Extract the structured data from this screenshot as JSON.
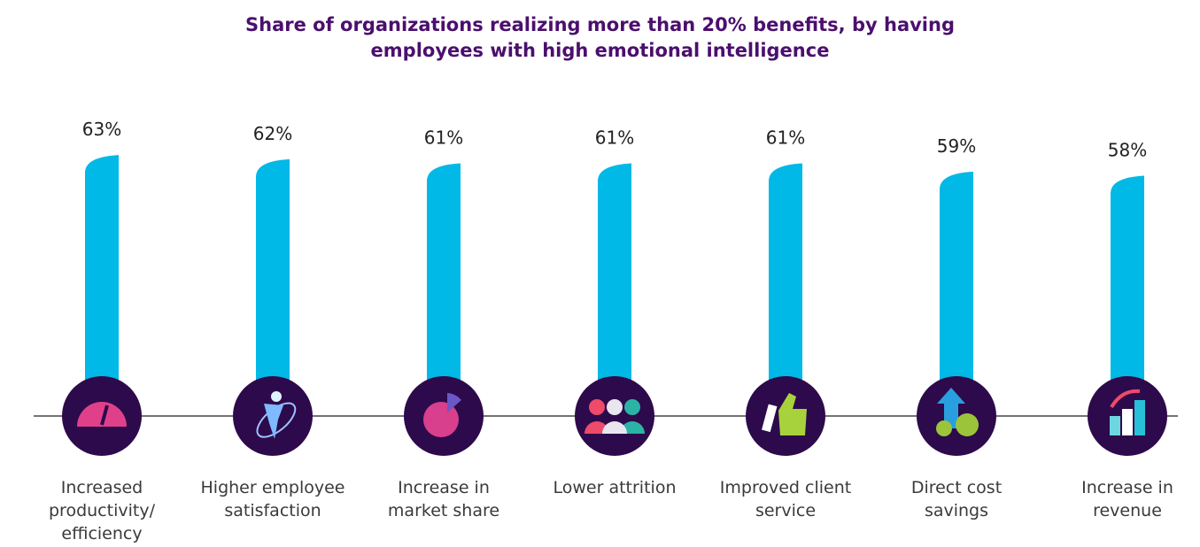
{
  "chart_data": {
    "type": "bar",
    "title": "Share of organizations realizing more than 20% benefits, by having employees with high emotional intelligence",
    "categories": [
      "Increased productivity/ efficiency",
      "Higher employee satisfaction",
      "Increase in market share",
      "Lower attrition",
      "Improved client service",
      "Direct cost savings",
      "Increase in revenue"
    ],
    "values": [
      63,
      62,
      61,
      61,
      61,
      59,
      58
    ],
    "value_labels": [
      "63%",
      "62%",
      "61%",
      "61%",
      "61%",
      "59%",
      "58%"
    ],
    "color": "#00b9e6"
  }
}
